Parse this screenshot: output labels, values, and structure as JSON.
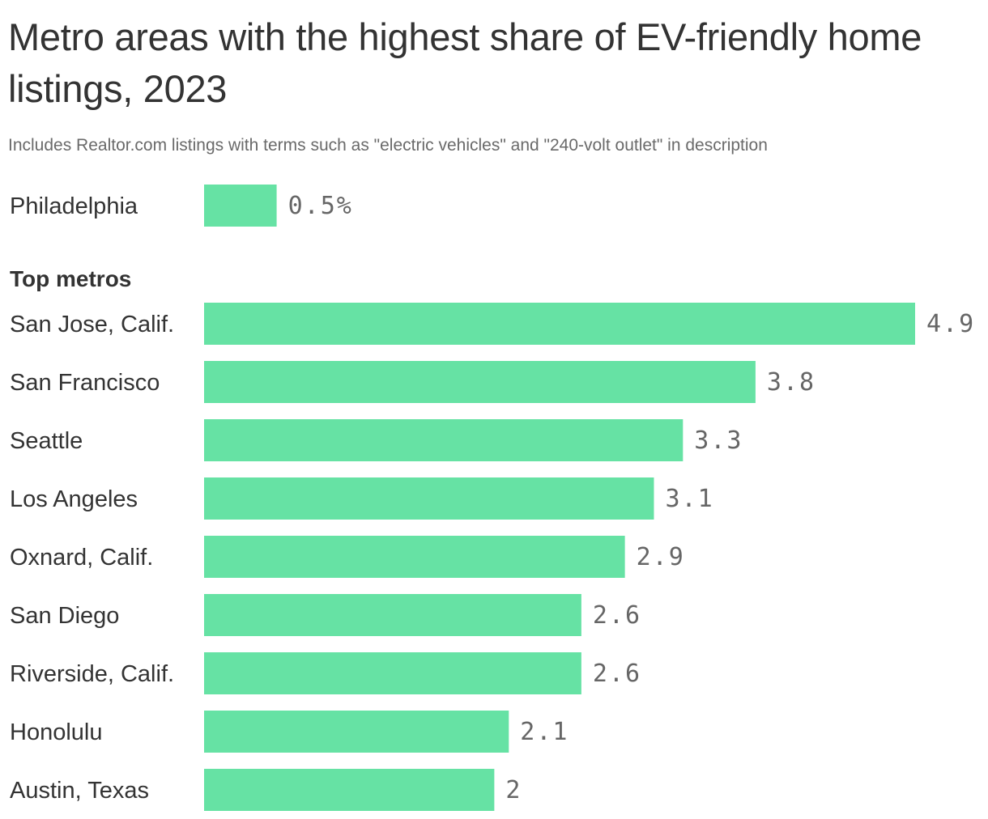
{
  "header": {
    "title": "Metro areas with the highest share of EV-friendly home listings, 2023",
    "subtitle": "Includes Realtor.com listings with terms such as \"electric vehicles\" and \"240-volt outlet\" in description"
  },
  "colors": {
    "bar": "#66e2a4",
    "text": "#333333",
    "value_text": "#666666",
    "subtitle_text": "#6a6a6a"
  },
  "chart_data": [
    {
      "type": "bar",
      "orientation": "horizontal",
      "title": "",
      "categories": [
        "Philadelphia"
      ],
      "values": [
        0.5
      ],
      "value_labels": [
        "0.5%"
      ],
      "xlim": [
        0,
        4.9
      ]
    },
    {
      "type": "bar",
      "orientation": "horizontal",
      "title": "Top metros",
      "categories": [
        "San Jose, Calif.",
        "San Francisco",
        "Seattle",
        "Los Angeles",
        "Oxnard, Calif.",
        "San Diego",
        "Riverside, Calif.",
        "Honolulu",
        "Austin, Texas"
      ],
      "values": [
        4.9,
        3.8,
        3.3,
        3.1,
        2.9,
        2.6,
        2.6,
        2.1,
        2.0
      ],
      "value_labels": [
        "4.9",
        "3.8",
        "3.3",
        "3.1",
        "2.9",
        "2.6",
        "2.6",
        "2.1",
        "2"
      ],
      "xlim": [
        0,
        4.9
      ]
    }
  ]
}
